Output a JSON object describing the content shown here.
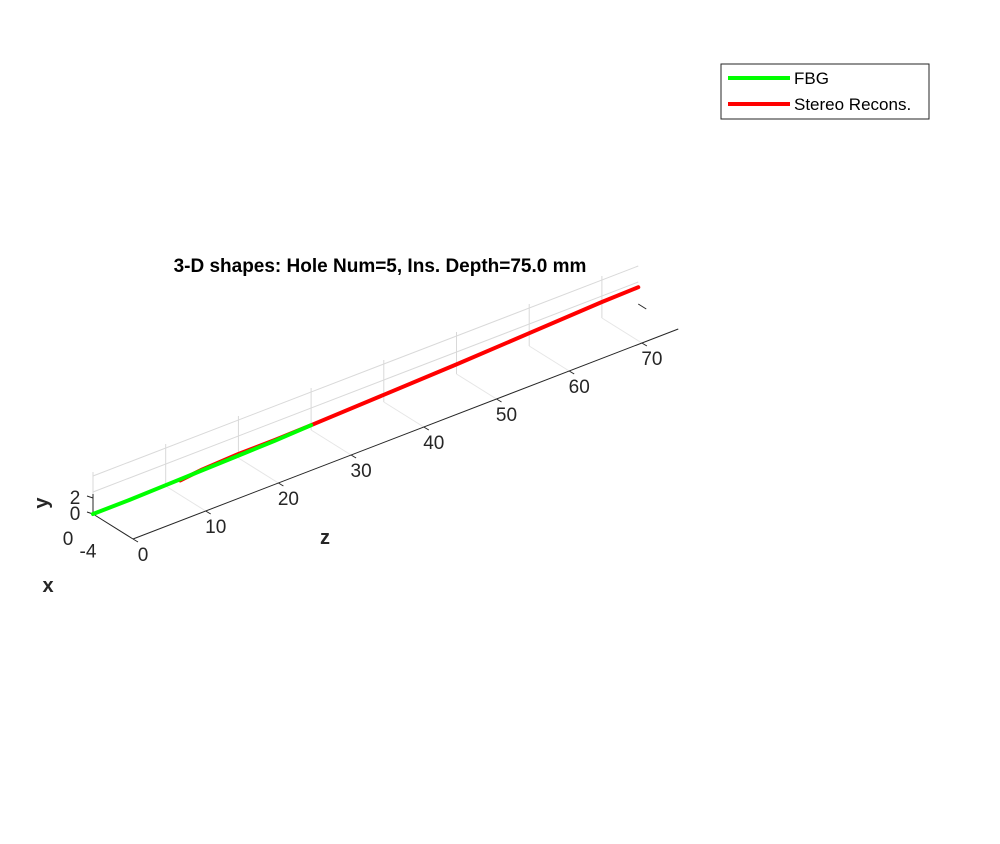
{
  "chart_data": {
    "type": "line",
    "title": "3-D shapes: Hole Num=5, Ins. Depth=75.0 mm",
    "xlabel": "z",
    "ylabel": "y",
    "zlabel": "x",
    "z_ticks": [
      "0",
      "10",
      "20",
      "30",
      "40",
      "50",
      "60",
      "70"
    ],
    "y_ticks": [
      "0",
      "2"
    ],
    "x_ticks": [
      "0",
      "-4"
    ],
    "zlim": [
      0,
      75
    ],
    "grid": true,
    "legend_position": "top-right",
    "series": [
      {
        "name": "FBG",
        "color": "#00ff00",
        "points": [
          {
            "z": 0,
            "y": 0,
            "x": 0
          },
          {
            "z": 5,
            "y": 0,
            "x": 0
          },
          {
            "z": 10,
            "y": 0.1,
            "x": 0
          },
          {
            "z": 15,
            "y": 0.2,
            "x": 0
          },
          {
            "z": 20,
            "y": 0.3,
            "x": 0
          },
          {
            "z": 25,
            "y": 0.4,
            "x": 0
          },
          {
            "z": 30,
            "y": 0.6,
            "x": 0
          }
        ]
      },
      {
        "name": "Stereo Recons.",
        "color": "#ff0000",
        "points": [
          {
            "z": 12,
            "y": 0,
            "x": 0
          },
          {
            "z": 15,
            "y": 0.3,
            "x": 0
          },
          {
            "z": 20,
            "y": 0.5,
            "x": 0
          },
          {
            "z": 25,
            "y": 0.5,
            "x": 0
          },
          {
            "z": 30,
            "y": 0.6,
            "x": 0
          },
          {
            "z": 40,
            "y": 0.9,
            "x": 0
          },
          {
            "z": 50,
            "y": 1.2,
            "x": 0
          },
          {
            "z": 60,
            "y": 1.6,
            "x": 0
          },
          {
            "z": 70,
            "y": 2.0,
            "x": 0
          },
          {
            "z": 75,
            "y": 2.1,
            "x": 0
          }
        ]
      }
    ]
  }
}
